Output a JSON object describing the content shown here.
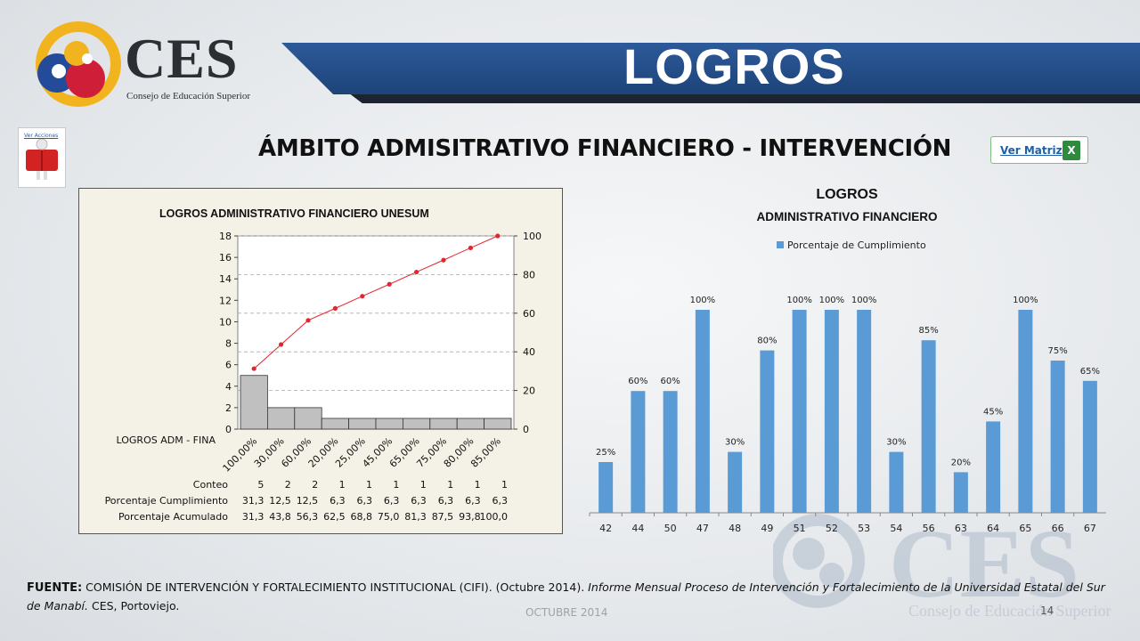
{
  "slide": {
    "title": "LOGROS",
    "subtitle": "ÁMBITO ADMISITRATIVO FINANCIERO - INTERVENCIÓN",
    "logo_text": "CES",
    "logo_subtext": "Consejo de Educación Superior",
    "acciones_label": "Ver Acciones",
    "matriz_label": "Ver Matriz",
    "fuente_label": "FUENTE:",
    "fuente_text": "COMISIÓN DE INTERVENCIÓN Y FORTALECIMIENTO INSTITUCIONAL (CIFI). (Octubre 2014).",
    "fuente_italic": "Informe Mensual Proceso de Intervención y Fortalecimiento de la Universidad Estatal del Sur de Manabí.",
    "fuente_end": "CES, Portoviejo.",
    "date": "OCTUBRE 2014",
    "page": "14",
    "colors": {
      "banner": "#24508c",
      "bar": "#5b9bd5",
      "pareto_bar": "#c0c0c0",
      "pareto_line": "#e3262e"
    }
  },
  "chart_data": [
    {
      "type": "bar",
      "title": "LOGROS ADMINISTRATIVO FINANCIERO UNESUM",
      "xlabel": "LOGROS ADM - FINA",
      "categories": [
        "100,00%",
        "30,00%",
        "60,00%",
        "20,00%",
        "25,00%",
        "45,00%",
        "65,00%",
        "75,00%",
        "80,00%",
        "85,00%"
      ],
      "series": [
        {
          "name": "Conteo",
          "values": [
            5,
            2,
            2,
            1,
            1,
            1,
            1,
            1,
            1,
            1
          ]
        },
        {
          "name": "Porcentaje Acumulado",
          "values": [
            31.3,
            43.8,
            56.3,
            62.5,
            68.8,
            75.0,
            81.3,
            87.5,
            93.8,
            100.0
          ]
        }
      ],
      "ylim_left": [
        0,
        18
      ],
      "yticks_left": [
        "0",
        "2",
        "4",
        "6",
        "8",
        "10",
        "12",
        "14",
        "16",
        "18"
      ],
      "ylim_right": [
        0,
        100
      ],
      "yticks_right": [
        "0",
        "20",
        "40",
        "60",
        "80",
        "100"
      ],
      "grid": true,
      "table": {
        "row_labels": [
          "Conteo",
          "Porcentaje Cumplimiento",
          "Porcentaje Acumulado"
        ],
        "rows": [
          [
            "5",
            "2",
            "2",
            "1",
            "1",
            "1",
            "1",
            "1",
            "1",
            "1"
          ],
          [
            "31,3",
            "12,5",
            "12,5",
            "6,3",
            "6,3",
            "6,3",
            "6,3",
            "6,3",
            "6,3",
            "6,3"
          ],
          [
            "31,3",
            "43,8",
            "56,3",
            "62,5",
            "68,8",
            "75,0",
            "81,3",
            "87,5",
            "93,8",
            "100,0"
          ]
        ]
      }
    },
    {
      "type": "bar",
      "title": "LOGROS",
      "subtitle": "ADMINISTRATIVO FINANCIERO",
      "legend": "top",
      "categories": [
        "42",
        "44",
        "50",
        "47",
        "48",
        "49",
        "51",
        "52",
        "53",
        "54",
        "56",
        "63",
        "64",
        "65",
        "66",
        "67"
      ],
      "series": [
        {
          "name": "Porcentaje de Cumplimiento",
          "values": [
            25,
            60,
            60,
            100,
            30,
            80,
            100,
            100,
            100,
            30,
            85,
            20,
            45,
            100,
            75,
            65
          ],
          "labels": [
            "25%",
            "60%",
            "60%",
            "100%",
            "30%",
            "80%",
            "100%",
            "100%",
            "100%",
            "30%",
            "85%",
            "20%",
            "45%",
            "100%",
            "75%",
            "65%"
          ]
        }
      ],
      "ylim": [
        0,
        100
      ],
      "grid": false
    }
  ]
}
